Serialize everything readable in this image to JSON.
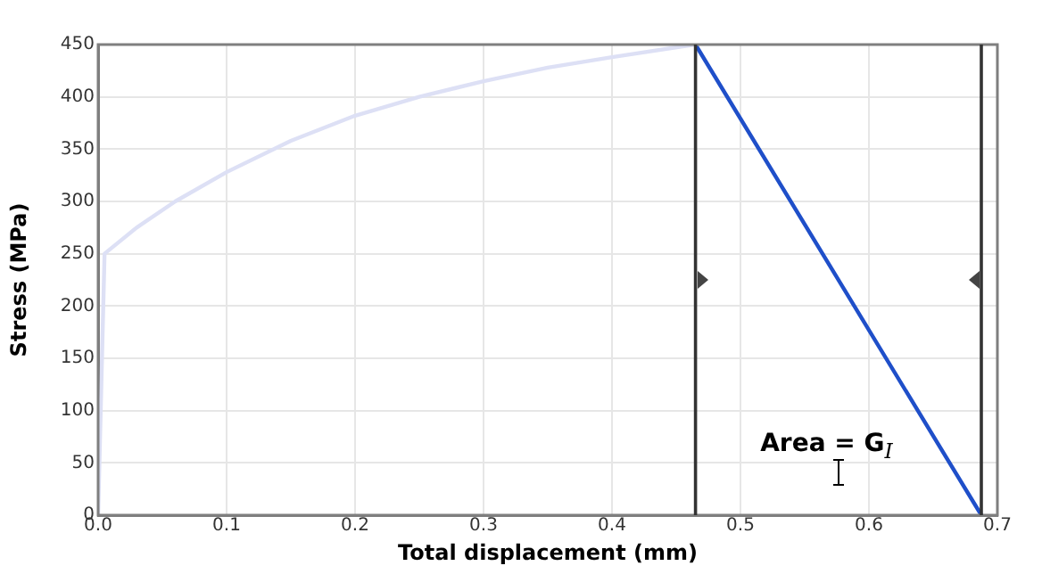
{
  "chart_data": {
    "type": "line",
    "xlabel": "Total displacement (mm)",
    "ylabel": "Stress (MPa)",
    "series": [
      {
        "color": "#dde0f5",
        "x": [
          0,
          0.005,
          0.03,
          0.06,
          0.1,
          0.15,
          0.2,
          0.25,
          0.3,
          0.35,
          0.4,
          0.465
        ],
        "values": [
          0,
          250,
          275,
          300,
          328,
          358,
          382,
          400,
          415,
          428,
          438,
          450
        ]
      },
      {
        "color": "#1f4fc9",
        "x": [
          0.465,
          0.6875
        ],
        "values": [
          450,
          0
        ]
      }
    ],
    "xlim": [
      0,
      0.7
    ],
    "xticks": [
      {
        "value": 0,
        "label": "0.0"
      },
      0.1,
      0.2,
      0.3,
      0.4,
      0.5,
      0.6,
      0.7
    ],
    "ylim": [
      0,
      450
    ],
    "yticks": [
      0,
      50,
      100,
      150,
      200,
      250,
      300,
      350,
      400,
      450
    ],
    "ref_lines": [
      {
        "axis": "x",
        "value": 0.465,
        "color": "#333333"
      },
      {
        "axis": "x",
        "value": 0.6875,
        "color": "#333333"
      }
    ],
    "annotations": [
      "Area = G$_{I}$"
    ],
    "grid": true,
    "legend": false,
    "marker": "none",
    "line_style": "solid"
  }
}
